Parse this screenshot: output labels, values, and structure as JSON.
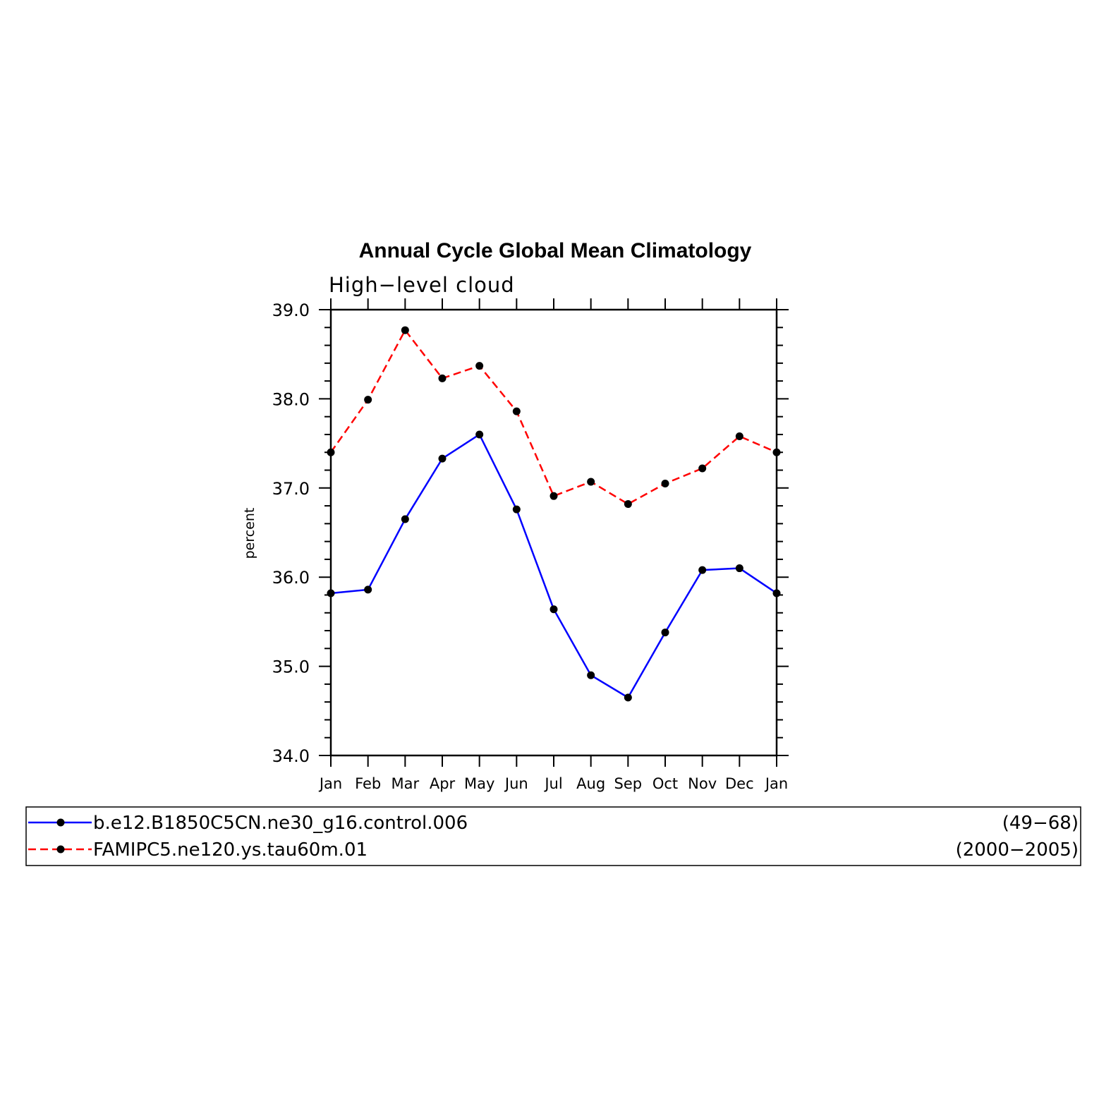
{
  "chart_data": {
    "type": "line",
    "title": "Annual Cycle Global Mean Climatology",
    "subtitle": "High−level cloud",
    "ylabel": "percent",
    "xlabel": "",
    "categories": [
      "Jan",
      "Feb",
      "Mar",
      "Apr",
      "May",
      "Jun",
      "Jul",
      "Aug",
      "Sep",
      "Oct",
      "Nov",
      "Dec",
      "Jan"
    ],
    "ylim": [
      34.0,
      39.0
    ],
    "yticks": [
      "34.0",
      "35.0",
      "36.0",
      "37.0",
      "38.0",
      "39.0"
    ],
    "yticks_values": [
      34.0,
      35.0,
      36.0,
      37.0,
      38.0,
      39.0
    ],
    "series": [
      {
        "name": "b.e12.B1850C5CN.ne30_g16.control.006",
        "period": "(49−68)",
        "color": "#0000ff",
        "dash": "solid",
        "values": [
          35.82,
          35.86,
          36.65,
          37.33,
          37.6,
          36.76,
          35.64,
          34.9,
          34.65,
          35.38,
          36.08,
          36.1,
          35.82
        ]
      },
      {
        "name": "FAMIPC5.ne120.ys.tau60m.01",
        "period": "(2000−2005)",
        "color": "#ff0000",
        "dash": "dashed",
        "values": [
          37.4,
          37.99,
          38.77,
          38.23,
          38.37,
          37.86,
          36.91,
          37.07,
          36.82,
          37.05,
          37.22,
          37.58,
          37.4
        ]
      }
    ],
    "grid": false,
    "legend_placement": "bottom"
  }
}
